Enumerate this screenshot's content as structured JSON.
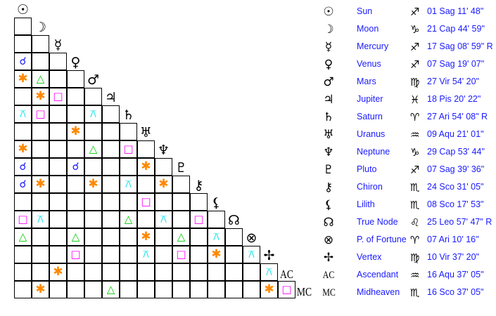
{
  "colors": {
    "conjunction": "#1a1aff",
    "sextile": "#ff8800",
    "trine": "#00cc00",
    "square": "#ff00ff",
    "quincunx": "#00e0e8"
  },
  "aspect_glyphs": {
    "conjunction": "☌",
    "sextile": "✱",
    "trine": "△",
    "square": "□",
    "quincunx": "⚻"
  },
  "planets": [
    {
      "glyph": "☉",
      "name": "Sun",
      "sign": "♐",
      "position": "01 Sag 11' 48\""
    },
    {
      "glyph": "☽",
      "name": "Moon",
      "sign": "♑",
      "position": "21 Cap 44' 59\""
    },
    {
      "glyph": "☿",
      "name": "Mercury",
      "sign": "♐",
      "position": "17 Sag 08' 59\" R"
    },
    {
      "glyph": "♀",
      "name": "Venus",
      "sign": "♐",
      "position": "07 Sag 19' 07\""
    },
    {
      "glyph": "♂",
      "name": "Mars",
      "sign": "♍",
      "position": "27 Vir 54' 20\""
    },
    {
      "glyph": "♃",
      "name": "Jupiter",
      "sign": "♓",
      "position": "18 Pis 20' 22\""
    },
    {
      "glyph": "♄",
      "name": "Saturn",
      "sign": "♈",
      "position": "27 Ari 54' 08\" R"
    },
    {
      "glyph": "♅",
      "name": "Uranus",
      "sign": "♒",
      "position": "09 Aqu 21' 01\""
    },
    {
      "glyph": "♆",
      "name": "Neptune",
      "sign": "♑",
      "position": "29 Cap 53' 44\""
    },
    {
      "glyph": "♇",
      "name": "Pluto",
      "sign": "♐",
      "position": "07 Sag 39' 36\""
    },
    {
      "glyph": "⚷",
      "name": "Chiron",
      "sign": "♏",
      "position": "24 Sco 31' 05\""
    },
    {
      "glyph": "⚸",
      "name": "Lilith",
      "sign": "♏",
      "position": "08 Sco 17' 53\""
    },
    {
      "glyph": "☊",
      "name": "True Node",
      "sign": "♌",
      "position": "25 Leo 57' 47\" R"
    },
    {
      "glyph": "⊗",
      "name": "P. of Fortune",
      "sign": "♈",
      "position": "07 Ari 10' 16\""
    },
    {
      "glyph": "✢",
      "name": "Vertex",
      "sign": "♍",
      "position": "10 Vir 37' 20\""
    },
    {
      "glyph": "AC",
      "name": "Ascendant",
      "sign": "♒",
      "position": "16 Aqu 37' 05\""
    },
    {
      "glyph": "MC",
      "name": "Midheaven",
      "sign": "♏",
      "position": "16 Sco 37' 05\""
    }
  ],
  "aspects": [
    {
      "a": "Venus",
      "b": "Sun",
      "type": "conjunction"
    },
    {
      "a": "Mars",
      "b": "Sun",
      "type": "sextile"
    },
    {
      "a": "Mars",
      "b": "Moon",
      "type": "trine"
    },
    {
      "a": "Jupiter",
      "b": "Moon",
      "type": "sextile"
    },
    {
      "a": "Jupiter",
      "b": "Mercury",
      "type": "square"
    },
    {
      "a": "Saturn",
      "b": "Sun",
      "type": "quincunx"
    },
    {
      "a": "Saturn",
      "b": "Moon",
      "type": "square"
    },
    {
      "a": "Saturn",
      "b": "Mars",
      "type": "quincunx"
    },
    {
      "a": "Uranus",
      "b": "Venus",
      "type": "sextile"
    },
    {
      "a": "Neptune",
      "b": "Sun",
      "type": "sextile"
    },
    {
      "a": "Neptune",
      "b": "Mars",
      "type": "trine"
    },
    {
      "a": "Neptune",
      "b": "Saturn",
      "type": "square"
    },
    {
      "a": "Pluto",
      "b": "Sun",
      "type": "conjunction"
    },
    {
      "a": "Pluto",
      "b": "Venus",
      "type": "conjunction"
    },
    {
      "a": "Pluto",
      "b": "Uranus",
      "type": "sextile"
    },
    {
      "a": "Chiron",
      "b": "Sun",
      "type": "conjunction"
    },
    {
      "a": "Chiron",
      "b": "Moon",
      "type": "sextile"
    },
    {
      "a": "Chiron",
      "b": "Mars",
      "type": "sextile"
    },
    {
      "a": "Chiron",
      "b": "Saturn",
      "type": "quincunx"
    },
    {
      "a": "Chiron",
      "b": "Neptune",
      "type": "sextile"
    },
    {
      "a": "Lilith",
      "b": "Uranus",
      "type": "square"
    },
    {
      "a": "True Node",
      "b": "Sun",
      "type": "square"
    },
    {
      "a": "True Node",
      "b": "Moon",
      "type": "quincunx"
    },
    {
      "a": "True Node",
      "b": "Saturn",
      "type": "trine"
    },
    {
      "a": "True Node",
      "b": "Neptune",
      "type": "quincunx"
    },
    {
      "a": "True Node",
      "b": "Chiron",
      "type": "square"
    },
    {
      "a": "P. of Fortune",
      "b": "Sun",
      "type": "trine"
    },
    {
      "a": "P. of Fortune",
      "b": "Venus",
      "type": "trine"
    },
    {
      "a": "P. of Fortune",
      "b": "Uranus",
      "type": "sextile"
    },
    {
      "a": "P. of Fortune",
      "b": "Pluto",
      "type": "trine"
    },
    {
      "a": "P. of Fortune",
      "b": "Lilith",
      "type": "quincunx"
    },
    {
      "a": "Vertex",
      "b": "Venus",
      "type": "square"
    },
    {
      "a": "Vertex",
      "b": "Uranus",
      "type": "quincunx"
    },
    {
      "a": "Vertex",
      "b": "Pluto",
      "type": "square"
    },
    {
      "a": "Vertex",
      "b": "Lilith",
      "type": "sextile"
    },
    {
      "a": "Vertex",
      "b": "P. of Fortune",
      "type": "quincunx"
    },
    {
      "a": "Ascendant",
      "b": "Mercury",
      "type": "sextile"
    },
    {
      "a": "Ascendant",
      "b": "Vertex",
      "type": "quincunx"
    },
    {
      "a": "Midheaven",
      "b": "Moon",
      "type": "sextile"
    },
    {
      "a": "Midheaven",
      "b": "Jupiter",
      "type": "trine"
    },
    {
      "a": "Midheaven",
      "b": "Vertex",
      "type": "sextile"
    },
    {
      "a": "Midheaven",
      "b": "Ascendant",
      "type": "square"
    }
  ]
}
